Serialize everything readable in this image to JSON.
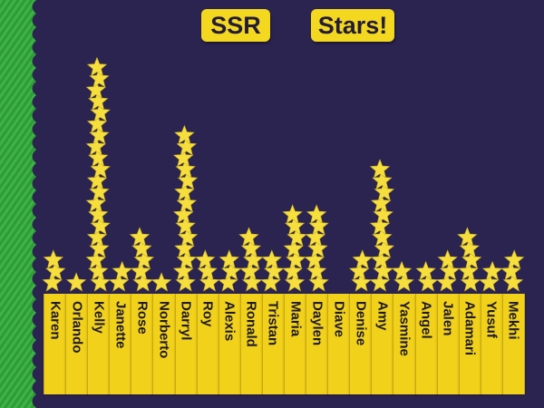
{
  "board": {
    "title_left": "SSR",
    "title_right": "Stars!",
    "colors": {
      "board": "#2b2350",
      "border": "#33a23a",
      "paper": "#f2d11b",
      "star": "#f6df3c"
    }
  },
  "students": [
    {
      "name": "Karen",
      "stars": 3
    },
    {
      "name": "Orlando",
      "stars": 1
    },
    {
      "name": "Kelly",
      "stars": 20
    },
    {
      "name": "Janette",
      "stars": 2
    },
    {
      "name": "Rose",
      "stars": 5
    },
    {
      "name": "Norberto",
      "stars": 1
    },
    {
      "name": "Darryl",
      "stars": 14
    },
    {
      "name": "Roy",
      "stars": 3
    },
    {
      "name": "Alexis",
      "stars": 3
    },
    {
      "name": "Ronald",
      "stars": 5
    },
    {
      "name": "Tristan",
      "stars": 3
    },
    {
      "name": "Maria",
      "stars": 7
    },
    {
      "name": "Daylen",
      "stars": 7
    },
    {
      "name": "Diave",
      "stars": 0
    },
    {
      "name": "Denise",
      "stars": 3
    },
    {
      "name": "Amy",
      "stars": 11
    },
    {
      "name": "Yasmine",
      "stars": 2
    },
    {
      "name": "Angel",
      "stars": 2
    },
    {
      "name": "Jalen",
      "stars": 3
    },
    {
      "name": "Adamari",
      "stars": 5
    },
    {
      "name": "Yusuf",
      "stars": 2
    },
    {
      "name": "Mekhi",
      "stars": 3
    }
  ]
}
